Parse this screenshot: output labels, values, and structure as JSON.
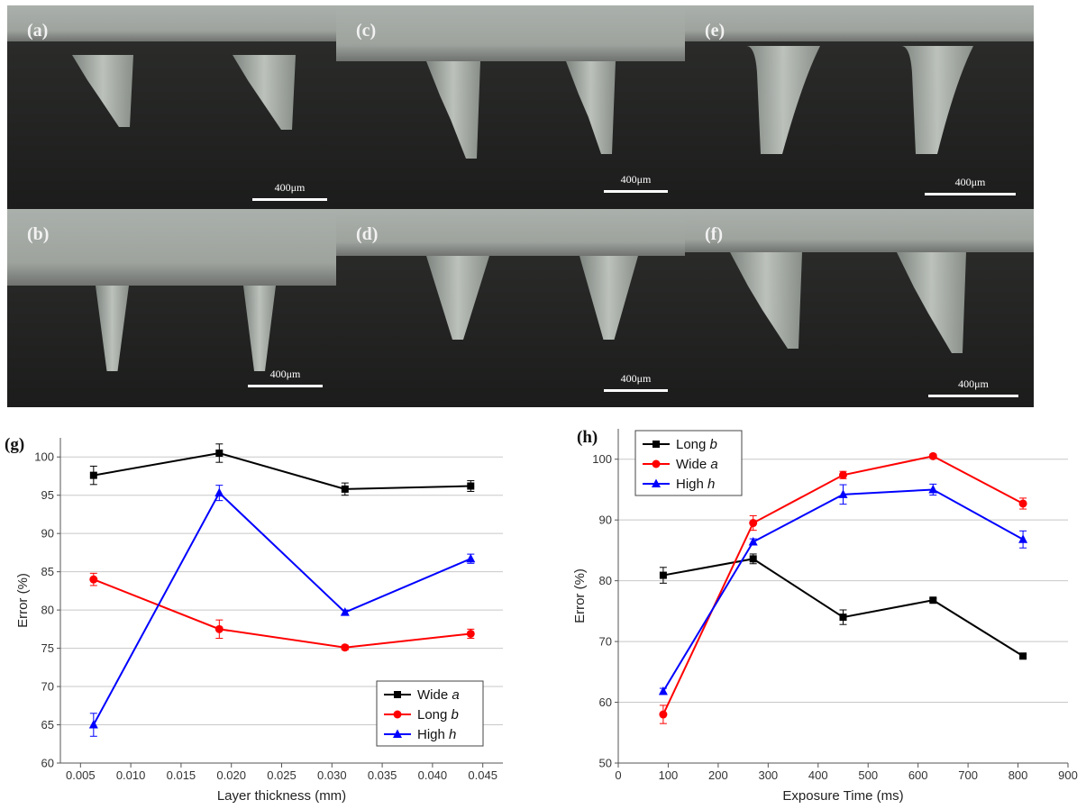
{
  "panels": [
    {
      "label": "(a)",
      "scale": "400μm"
    },
    {
      "label": "(c)",
      "scale": "400μm"
    },
    {
      "label": "(e)",
      "scale": "400μm"
    },
    {
      "label": "(b)",
      "scale": "400μm"
    },
    {
      "label": "(d)",
      "scale": "400μm"
    },
    {
      "label": "(f)",
      "scale": "400μm"
    }
  ],
  "chart_data": [
    {
      "type": "line",
      "panel_label": "(g)",
      "xlabel": "Layer thickness (mm)",
      "ylabel": "Error (%)",
      "xlim": [
        0.003,
        0.047
      ],
      "ylim": [
        60,
        102.5
      ],
      "xticks": [
        "0.005",
        "0.010",
        "0.015",
        "0.020",
        "0.025",
        "0.030",
        "0.035",
        "0.040",
        "0.045"
      ],
      "xtick_values": [
        0.005,
        0.01,
        0.015,
        0.02,
        0.025,
        0.03,
        0.035,
        0.04,
        0.045
      ],
      "yticks": [
        "60",
        "65",
        "70",
        "75",
        "80",
        "85",
        "90",
        "95",
        "100"
      ],
      "ytick_values": [
        60,
        65,
        70,
        75,
        80,
        85,
        90,
        95,
        100
      ],
      "grid": "horizontal",
      "legend_position": "bottom-right",
      "series": [
        {
          "name": "Wide ",
          "name_italic": "a",
          "color": "#000000",
          "marker": "square",
          "x": [
            0.0063,
            0.0188,
            0.0313,
            0.0438
          ],
          "y": [
            97.6,
            100.5,
            95.8,
            96.2
          ],
          "err": [
            1.2,
            1.2,
            0.8,
            0.7
          ]
        },
        {
          "name": "Long ",
          "name_italic": "b",
          "color": "#ff0000",
          "marker": "circle",
          "x": [
            0.0063,
            0.0188,
            0.0313,
            0.0438
          ],
          "y": [
            84.0,
            77.5,
            75.1,
            76.9
          ],
          "err": [
            0.8,
            1.2,
            0.3,
            0.6
          ]
        },
        {
          "name": "High ",
          "name_italic": "h",
          "color": "#0000ff",
          "marker": "triangle",
          "x": [
            0.0063,
            0.0188,
            0.0313,
            0.0438
          ],
          "y": [
            65.0,
            95.3,
            79.7,
            86.7
          ],
          "err": [
            1.5,
            1.0,
            0.3,
            0.6
          ]
        }
      ]
    },
    {
      "type": "line",
      "panel_label": "(h)",
      "xlabel": "Exposure Time (ms)",
      "ylabel": "Error (%)",
      "xlim": [
        0,
        900
      ],
      "ylim": [
        50,
        105
      ],
      "xticks": [
        "0",
        "100",
        "200",
        "300",
        "400",
        "500",
        "600",
        "700",
        "800",
        "900"
      ],
      "xtick_values": [
        0,
        100,
        200,
        300,
        400,
        500,
        600,
        700,
        800,
        900
      ],
      "yticks": [
        "50",
        "60",
        "70",
        "80",
        "90",
        "100"
      ],
      "ytick_values": [
        50,
        60,
        70,
        80,
        90,
        100
      ],
      "grid": "horizontal",
      "legend_position": "top-left",
      "series": [
        {
          "name": "Long ",
          "name_italic": "b",
          "color": "#000000",
          "marker": "square",
          "x": [
            90,
            270,
            450,
            630,
            810
          ],
          "y": [
            80.9,
            83.6,
            74.0,
            76.8,
            67.6
          ],
          "err": [
            1.3,
            0.8,
            1.2,
            0.3,
            0.3
          ]
        },
        {
          "name": "Wide ",
          "name_italic": "a",
          "color": "#ff0000",
          "marker": "circle",
          "x": [
            90,
            270,
            450,
            630,
            810
          ],
          "y": [
            58.0,
            89.5,
            97.4,
            100.5,
            92.7
          ],
          "err": [
            1.5,
            1.2,
            0.6,
            0.3,
            0.9
          ]
        },
        {
          "name": "High ",
          "name_italic": "h",
          "color": "#0000ff",
          "marker": "triangle",
          "x": [
            90,
            270,
            450,
            630,
            810
          ],
          "y": [
            61.8,
            86.4,
            94.2,
            95.0,
            86.8
          ],
          "err": [
            0.5,
            0.5,
            1.6,
            0.9,
            1.4
          ]
        }
      ]
    }
  ]
}
